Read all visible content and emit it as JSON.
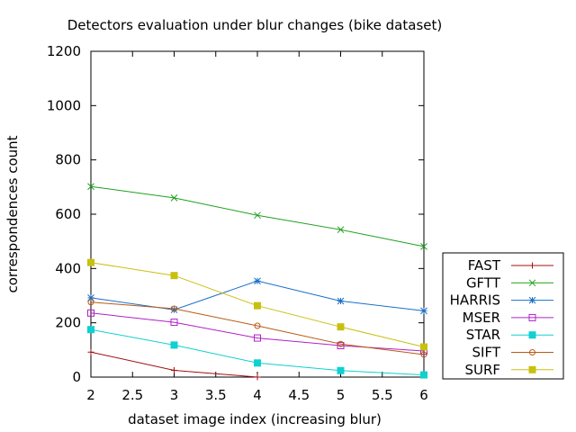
{
  "chart_data": {
    "type": "line",
    "title": "Detectors evaluation under blur changes (bike dataset)",
    "xlabel": "dataset image index (increasing blur)",
    "ylabel": "correspondences count",
    "xlim": [
      2,
      6
    ],
    "ylim": [
      0,
      1200
    ],
    "xticks": [
      "2",
      "2.5",
      "3",
      "3.5",
      "4",
      "4.5",
      "5",
      "5.5",
      "6"
    ],
    "yticks": [
      "0",
      "200",
      "400",
      "600",
      "800",
      "1000",
      "1200"
    ],
    "grid": false,
    "legend_position": "bottom-right, outside plot",
    "series": [
      {
        "name": "FAST",
        "color": "#a01010",
        "marker": "plus",
        "x": [
          2,
          3,
          4
        ],
        "y": [
          92,
          25,
          0
        ]
      },
      {
        "name": "GFTT",
        "color": "#1fa01f",
        "marker": "cross",
        "x": [
          2,
          3,
          4,
          5,
          6
        ],
        "y": [
          702,
          660,
          596,
          543,
          481
        ]
      },
      {
        "name": "HARRIS",
        "color": "#1a6fc8",
        "marker": "star",
        "x": [
          2,
          3,
          4,
          5,
          6
        ],
        "y": [
          292,
          248,
          354,
          280,
          244
        ]
      },
      {
        "name": "MSER",
        "color": "#b020c8",
        "marker": "open-square",
        "x": [
          2,
          3,
          4,
          5,
          6
        ],
        "y": [
          236,
          202,
          144,
          116,
          96
        ]
      },
      {
        "name": "STAR",
        "color": "#10d0d0",
        "marker": "filled-square",
        "x": [
          2,
          3,
          4,
          5,
          6
        ],
        "y": [
          175,
          118,
          52,
          24,
          8
        ]
      },
      {
        "name": "SIFT",
        "color": "#b85a16",
        "marker": "open-circle",
        "x": [
          2,
          3,
          4,
          5,
          6
        ],
        "y": [
          276,
          252,
          189,
          122,
          83
        ]
      },
      {
        "name": "SURF",
        "color": "#c8c010",
        "marker": "filled-square",
        "x": [
          2,
          3,
          4,
          5,
          6
        ],
        "y": [
          422,
          374,
          263,
          185,
          111
        ]
      }
    ]
  }
}
